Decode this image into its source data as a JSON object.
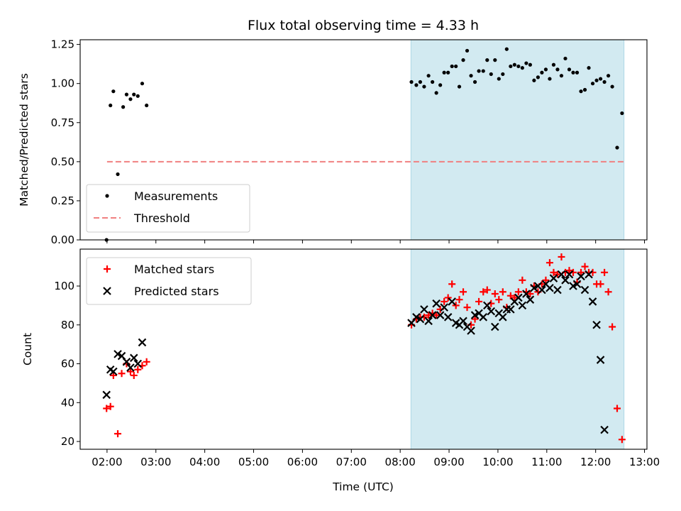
{
  "chart_data": [
    {
      "type": "scatter",
      "title": "Flux total observing time = 4.33 h",
      "xlabel": "",
      "ylabel": "Matched/Predicted stars",
      "ylim": [
        0,
        1.28
      ],
      "yticks": [
        "0.00",
        "0.25",
        "0.50",
        "0.75",
        "1.00",
        "1.25"
      ],
      "ytick_values": [
        0,
        0.25,
        0.5,
        0.75,
        1.0,
        1.25
      ],
      "shaded_region": {
        "x_start": 8.22,
        "x_end": 12.58,
        "color": "#add8e6"
      },
      "threshold": {
        "name": "Threshold",
        "value": 0.5,
        "x_start": 2.0,
        "x_end": 12.58,
        "color": "#f08080"
      },
      "series": [
        {
          "name": "Measurements",
          "marker": "dot",
          "color": "#000000",
          "points": [
            [
              1.99,
              0.0
            ],
            [
              2.07,
              0.86
            ],
            [
              2.13,
              0.95
            ],
            [
              2.22,
              0.42
            ],
            [
              2.33,
              0.85
            ],
            [
              2.4,
              0.93
            ],
            [
              2.48,
              0.9
            ],
            [
              2.55,
              0.93
            ],
            [
              2.63,
              0.92
            ],
            [
              2.72,
              1.0
            ],
            [
              2.81,
              0.86
            ],
            [
              8.23,
              1.01
            ],
            [
              8.33,
              0.99
            ],
            [
              8.41,
              1.01
            ],
            [
              8.49,
              0.98
            ],
            [
              8.58,
              1.05
            ],
            [
              8.66,
              1.01
            ],
            [
              8.74,
              0.94
            ],
            [
              8.82,
              0.99
            ],
            [
              8.9,
              1.07
            ],
            [
              8.98,
              1.07
            ],
            [
              9.06,
              1.11
            ],
            [
              9.14,
              1.11
            ],
            [
              9.21,
              0.98
            ],
            [
              9.29,
              1.15
            ],
            [
              9.37,
              1.21
            ],
            [
              9.45,
              1.05
            ],
            [
              9.53,
              1.01
            ],
            [
              9.61,
              1.08
            ],
            [
              9.7,
              1.08
            ],
            [
              9.78,
              1.15
            ],
            [
              9.86,
              1.06
            ],
            [
              9.94,
              1.15
            ],
            [
              10.02,
              1.03
            ],
            [
              10.1,
              1.06
            ],
            [
              10.18,
              1.22
            ],
            [
              10.26,
              1.11
            ],
            [
              10.34,
              1.12
            ],
            [
              10.42,
              1.11
            ],
            [
              10.5,
              1.1
            ],
            [
              10.58,
              1.13
            ],
            [
              10.66,
              1.12
            ],
            [
              10.74,
              1.02
            ],
            [
              10.82,
              1.04
            ],
            [
              10.9,
              1.07
            ],
            [
              10.98,
              1.09
            ],
            [
              11.06,
              1.03
            ],
            [
              11.14,
              1.12
            ],
            [
              11.22,
              1.09
            ],
            [
              11.3,
              1.05
            ],
            [
              11.38,
              1.16
            ],
            [
              11.46,
              1.09
            ],
            [
              11.54,
              1.07
            ],
            [
              11.62,
              1.07
            ],
            [
              11.7,
              0.95
            ],
            [
              11.78,
              0.96
            ],
            [
              11.86,
              1.1
            ],
            [
              11.94,
              1.0
            ],
            [
              12.02,
              1.02
            ],
            [
              12.1,
              1.03
            ],
            [
              12.18,
              1.01
            ],
            [
              12.26,
              1.05
            ],
            [
              12.34,
              0.98
            ],
            [
              12.44,
              0.59
            ],
            [
              12.54,
              0.81
            ]
          ]
        }
      ],
      "legend": {
        "position": "lower-left",
        "entries": [
          "Measurements",
          "Threshold"
        ]
      }
    },
    {
      "type": "scatter",
      "xlabel": "Time (UTC)",
      "ylabel": "Count",
      "ylim": [
        16,
        119
      ],
      "yticks": [
        "20",
        "40",
        "60",
        "80",
        "100"
      ],
      "ytick_values": [
        20,
        40,
        60,
        80,
        100
      ],
      "xlim": [
        1.45,
        13.05
      ],
      "xticks": [
        "02:00",
        "03:00",
        "04:00",
        "05:00",
        "06:00",
        "07:00",
        "08:00",
        "09:00",
        "10:00",
        "11:00",
        "12:00",
        "13:00"
      ],
      "xtick_values": [
        2,
        3,
        4,
        5,
        6,
        7,
        8,
        9,
        10,
        11,
        12,
        13
      ],
      "shaded_region": {
        "x_start": 8.22,
        "x_end": 12.58,
        "color": "#add8e6"
      },
      "series": [
        {
          "name": "Matched stars",
          "marker": "plus",
          "color": "#ff0000",
          "points": [
            [
              1.99,
              37
            ],
            [
              2.07,
              38
            ],
            [
              2.13,
              54
            ],
            [
              2.22,
              24
            ],
            [
              2.3,
              55
            ],
            [
              2.4,
              60
            ],
            [
              2.48,
              56
            ],
            [
              2.55,
              54
            ],
            [
              2.63,
              57
            ],
            [
              2.72,
              59
            ],
            [
              2.81,
              61
            ],
            [
              8.23,
              80
            ],
            [
              8.33,
              83
            ],
            [
              8.41,
              84
            ],
            [
              8.49,
              84
            ],
            [
              8.58,
              85
            ],
            [
              8.66,
              86
            ],
            [
              8.74,
              85
            ],
            [
              8.82,
              88
            ],
            [
              8.9,
              92
            ],
            [
              8.98,
              94
            ],
            [
              9.06,
              101
            ],
            [
              9.14,
              90
            ],
            [
              9.21,
              93
            ],
            [
              9.29,
              97
            ],
            [
              9.37,
              89
            ],
            [
              9.45,
              80
            ],
            [
              9.53,
              83
            ],
            [
              9.61,
              92
            ],
            [
              9.7,
              97
            ],
            [
              9.78,
              98
            ],
            [
              9.86,
              91
            ],
            [
              9.94,
              96
            ],
            [
              10.02,
              93
            ],
            [
              10.1,
              97
            ],
            [
              10.18,
              89
            ],
            [
              10.26,
              95
            ],
            [
              10.34,
              94
            ],
            [
              10.42,
              97
            ],
            [
              10.5,
              103
            ],
            [
              10.58,
              97
            ],
            [
              10.66,
              96
            ],
            [
              10.74,
              100
            ],
            [
              10.82,
              97
            ],
            [
              10.9,
              101
            ],
            [
              10.98,
              103
            ],
            [
              11.06,
              112
            ],
            [
              11.14,
              107
            ],
            [
              11.22,
              106
            ],
            [
              11.3,
              115
            ],
            [
              11.38,
              107
            ],
            [
              11.46,
              108
            ],
            [
              11.54,
              107
            ],
            [
              11.62,
              102
            ],
            [
              11.7,
              107
            ],
            [
              11.78,
              110
            ],
            [
              11.86,
              107
            ],
            [
              11.94,
              107
            ],
            [
              12.02,
              101
            ],
            [
              12.1,
              101
            ],
            [
              12.18,
              107
            ],
            [
              12.26,
              97
            ],
            [
              12.34,
              79
            ],
            [
              12.44,
              37
            ],
            [
              12.54,
              21
            ]
          ]
        },
        {
          "name": "Predicted stars",
          "marker": "x",
          "color": "#000000",
          "points": [
            [
              1.99,
              44
            ],
            [
              2.07,
              57
            ],
            [
              2.13,
              56
            ],
            [
              2.22,
              65
            ],
            [
              2.3,
              64
            ],
            [
              2.4,
              61
            ],
            [
              2.48,
              58
            ],
            [
              2.55,
              63
            ],
            [
              2.63,
              60
            ],
            [
              2.72,
              71
            ],
            [
              8.23,
              81
            ],
            [
              8.33,
              84
            ],
            [
              8.41,
              83
            ],
            [
              8.49,
              88
            ],
            [
              8.58,
              82
            ],
            [
              8.66,
              85
            ],
            [
              8.74,
              91
            ],
            [
              8.82,
              85
            ],
            [
              8.9,
              89
            ],
            [
              8.98,
              84
            ],
            [
              9.06,
              92
            ],
            [
              9.14,
              81
            ],
            [
              9.21,
              80
            ],
            [
              9.29,
              82
            ],
            [
              9.37,
              79
            ],
            [
              9.45,
              77
            ],
            [
              9.53,
              85
            ],
            [
              9.61,
              86
            ],
            [
              9.7,
              84
            ],
            [
              9.78,
              90
            ],
            [
              9.86,
              87
            ],
            [
              9.94,
              79
            ],
            [
              10.02,
              86
            ],
            [
              10.1,
              84
            ],
            [
              10.18,
              88
            ],
            [
              10.26,
              88
            ],
            [
              10.34,
              92
            ],
            [
              10.42,
              94
            ],
            [
              10.5,
              90
            ],
            [
              10.58,
              96
            ],
            [
              10.66,
              93
            ],
            [
              10.74,
              99
            ],
            [
              10.82,
              100
            ],
            [
              10.9,
              98
            ],
            [
              10.98,
              101
            ],
            [
              11.06,
              99
            ],
            [
              11.14,
              104
            ],
            [
              11.22,
              98
            ],
            [
              11.3,
              106
            ],
            [
              11.38,
              103
            ],
            [
              11.46,
              106
            ],
            [
              11.54,
              100
            ],
            [
              11.62,
              101
            ],
            [
              11.7,
              105
            ],
            [
              11.78,
              98
            ],
            [
              11.86,
              106
            ],
            [
              11.94,
              92
            ],
            [
              12.02,
              80
            ],
            [
              12.1,
              62
            ],
            [
              12.18,
              26
            ]
          ]
        }
      ],
      "legend": {
        "position": "top-left",
        "entries": [
          "Matched stars",
          "Predicted stars"
        ]
      }
    }
  ]
}
